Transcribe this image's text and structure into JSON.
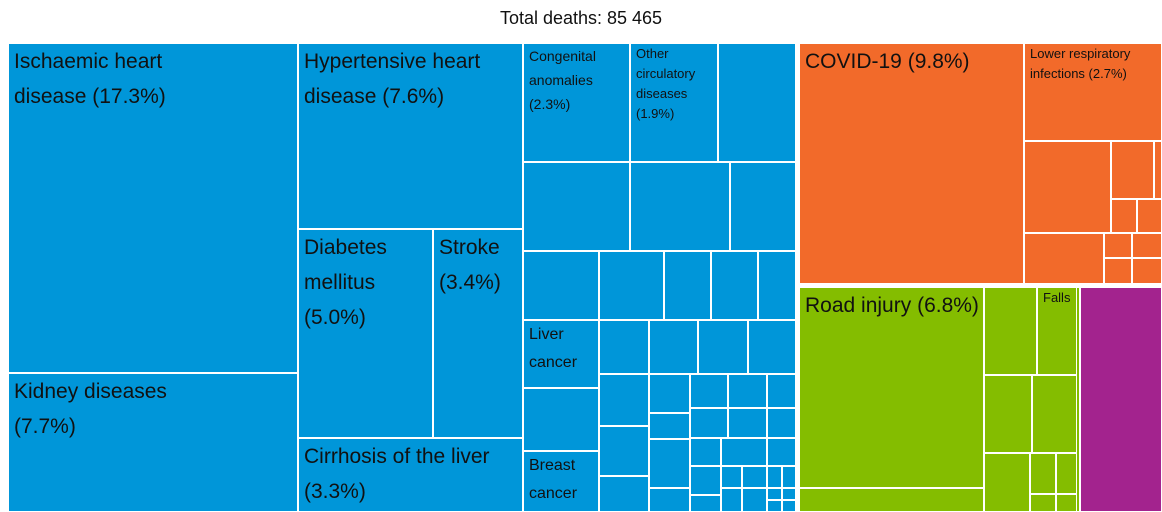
{
  "chart_data": {
    "type": "treemap",
    "title": "Total deaths: 85 465",
    "groups": [
      {
        "color": "#0096d9",
        "children": [
          {
            "name": "Ischaemic heart disease",
            "value": 17.3,
            "value_label": "(17.3%)"
          },
          {
            "name": "Kidney diseases",
            "value": 7.7,
            "value_label": "(7.7%)"
          },
          {
            "name": "Hypertensive heart disease",
            "value": 7.6,
            "value_label": "(7.6%)"
          },
          {
            "name": "Diabetes mellitus",
            "value": 5.0,
            "value_label": "(5.0%)"
          },
          {
            "name": "Stroke",
            "value": 3.4,
            "value_label": "(3.4%)"
          },
          {
            "name": "Cirrhosis of the liver",
            "value": 3.3,
            "value_label": "(3.3%)"
          },
          {
            "name": "Congenital anomalies",
            "value": 2.3,
            "value_label": "(2.3%)"
          },
          {
            "name": "Other circulatory diseases",
            "value": 1.9,
            "value_label": "(1.9%)"
          },
          {
            "name": "Liver cancer"
          },
          {
            "name": "Breast cancer"
          }
        ]
      },
      {
        "color": "#f26a2a",
        "children": [
          {
            "name": "COVID-19",
            "value": 9.8,
            "value_label": "(9.8%)"
          },
          {
            "name": "Lower respiratory infections",
            "value": 2.7,
            "value_label": "(2.7%)"
          }
        ]
      },
      {
        "color": "#84bd00",
        "children": [
          {
            "name": "Road injury",
            "value": 6.8,
            "value_label": "(6.8%)"
          },
          {
            "name": "Falls"
          }
        ]
      },
      {
        "color": "#a3238e",
        "children": []
      }
    ]
  }
}
